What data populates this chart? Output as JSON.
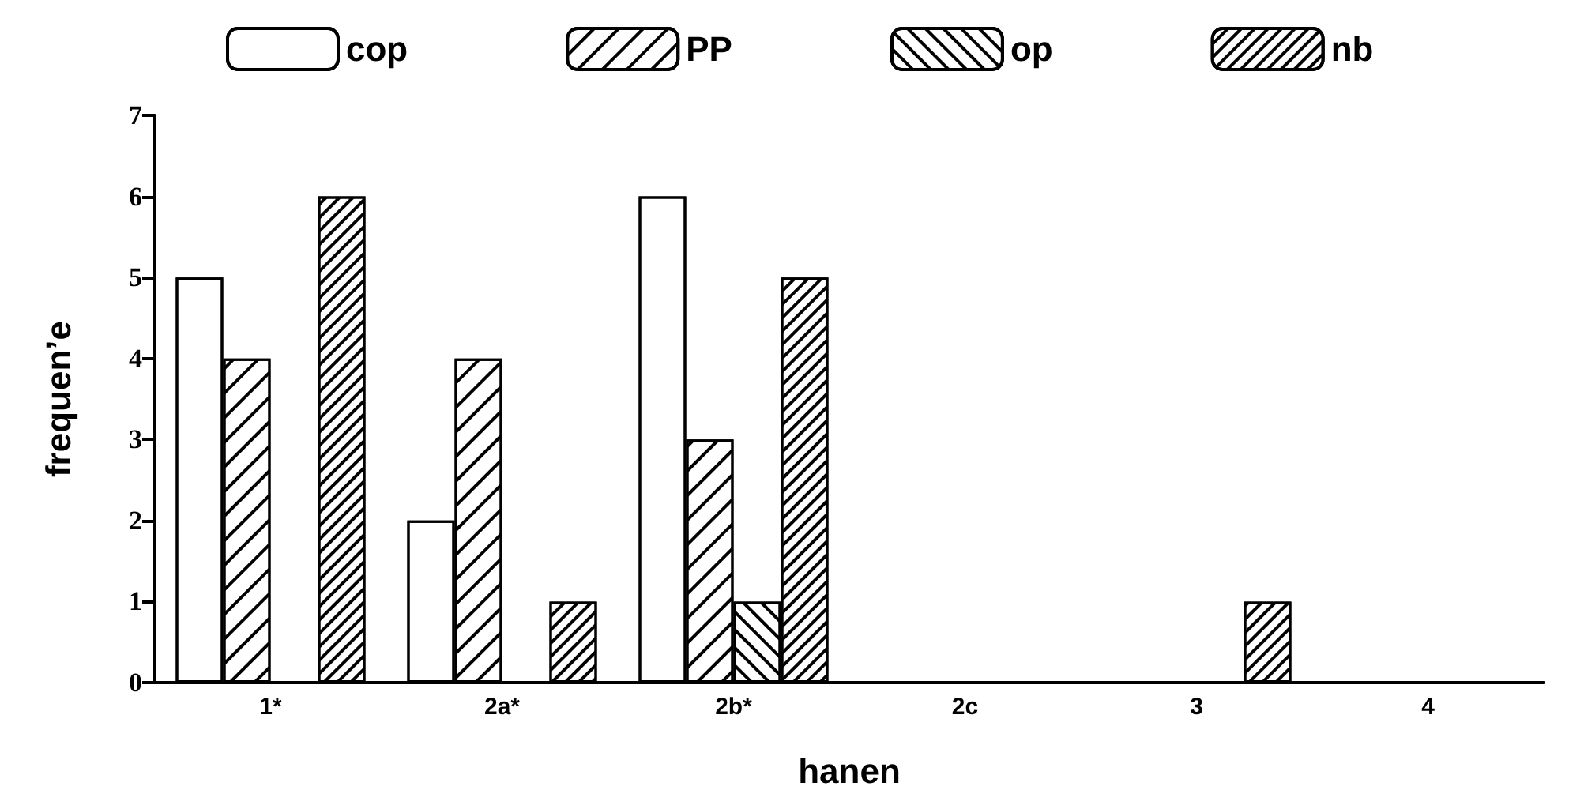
{
  "chart_data": {
    "type": "bar",
    "xlabel": "hanen",
    "ylabel": "frequen’e",
    "categories": [
      "1*",
      "2a*",
      "2b*",
      "2c",
      "3",
      "4"
    ],
    "series": [
      {
        "name": "cop",
        "color": "#ffffff",
        "values": [
          5,
          2,
          6,
          0,
          0,
          0
        ]
      },
      {
        "name": "PP",
        "color": "#ffffff",
        "values": [
          4,
          4,
          3,
          0,
          0,
          0
        ]
      },
      {
        "name": "op",
        "color": "#ffffff",
        "values": [
          0,
          0,
          1,
          0,
          0,
          0
        ]
      },
      {
        "name": "nb",
        "color": "#ffffff",
        "values": [
          6,
          1,
          5,
          0,
          1,
          0
        ]
      }
    ],
    "ylim": [
      0,
      7
    ],
    "yticks": [
      0,
      1,
      2,
      3,
      4,
      5,
      6,
      7
    ],
    "grid": false,
    "legend": "top"
  }
}
